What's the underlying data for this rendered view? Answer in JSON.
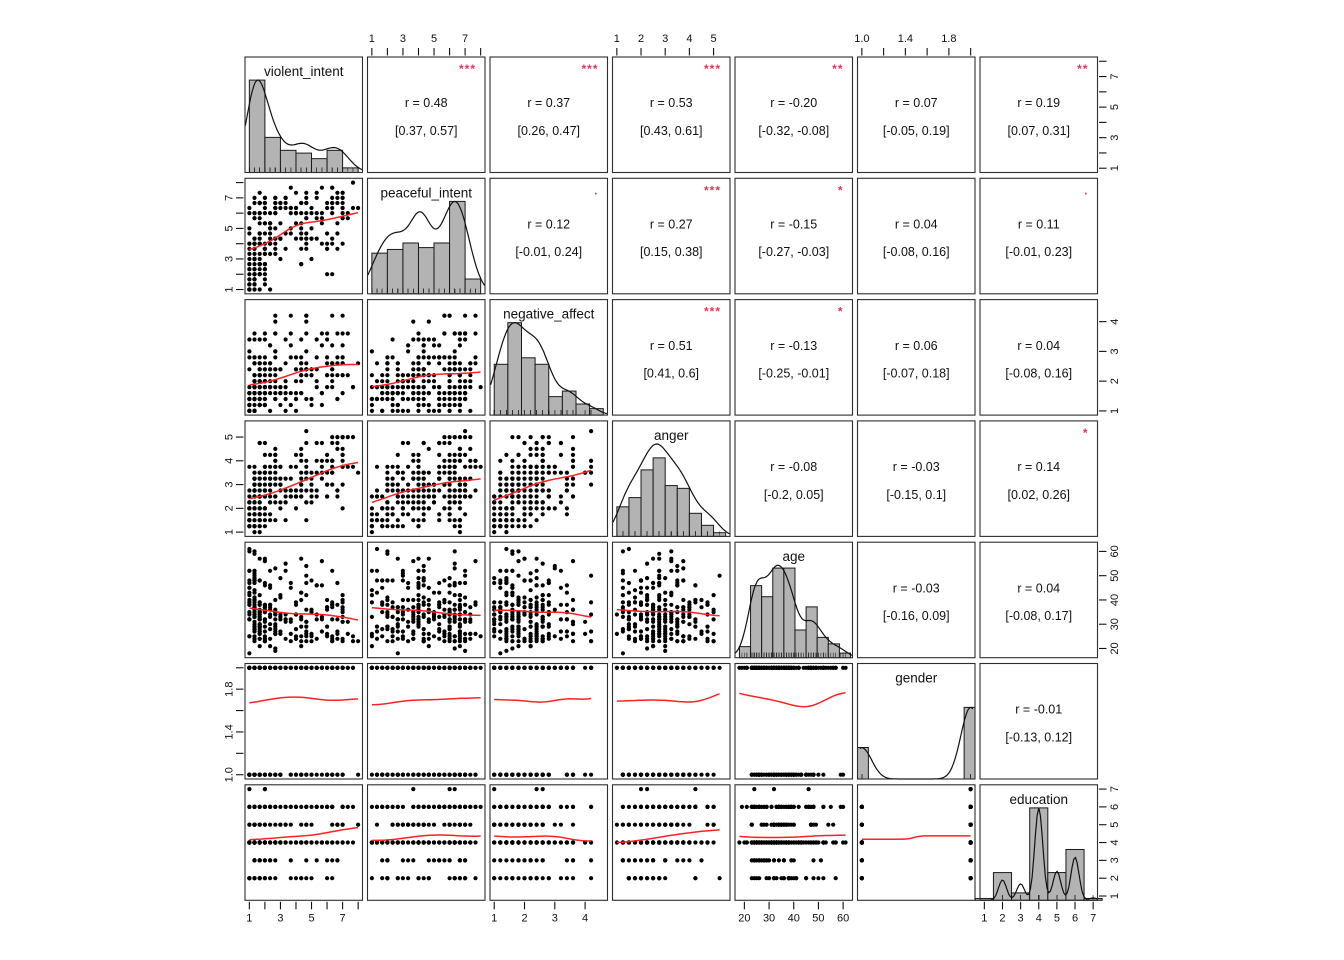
{
  "chart_data": {
    "type": "scatterplot-matrix",
    "n_points": 260,
    "variables": [
      {
        "name": "violent_intent",
        "kind": "likert",
        "lim": [
          0.72,
          8.28
        ],
        "snap": 0.3333,
        "ticks_at": [
          1,
          2,
          3,
          4,
          5,
          6,
          7,
          8
        ],
        "tick_labels": [
          "1",
          "",
          "3",
          "",
          "5",
          "",
          "7",
          ""
        ],
        "hist": {
          "edges": [
            1,
            2,
            3,
            4,
            5,
            6,
            7,
            8
          ],
          "heights": [
            1.0,
            0.38,
            0.24,
            0.21,
            0.15,
            0.24,
            0.05
          ],
          "hscale": 0.8
        },
        "kde_bw": 0.55
      },
      {
        "name": "peaceful_intent",
        "kind": "likert",
        "lim": [
          0.72,
          8.28
        ],
        "snap": 0.3333,
        "ticks_at": [
          1,
          2,
          3,
          4,
          5,
          6,
          7,
          8
        ],
        "tick_labels": [
          "1",
          "",
          "3",
          "",
          "5",
          "",
          "7",
          ""
        ],
        "hist": {
          "edges": [
            1,
            2,
            3,
            4,
            5,
            6,
            7,
            8
          ],
          "heights": [
            0.44,
            0.48,
            0.55,
            0.5,
            0.55,
            1.0,
            0.16
          ],
          "hscale": 0.8
        },
        "kde_bw": 0.55
      },
      {
        "name": "negative_affect",
        "kind": "cont",
        "lim": [
          0.86,
          4.74
        ],
        "snap": 0.2,
        "ticks_at": [
          1,
          2,
          3,
          4
        ],
        "tick_labels": [
          "1",
          "2",
          "3",
          "4"
        ],
        "hist": {
          "edges": [
            1,
            1.45,
            1.9,
            2.35,
            2.8,
            3.25,
            3.7,
            4.15,
            4.6
          ],
          "heights": [
            0.55,
            1.0,
            0.62,
            0.55,
            0.2,
            0.26,
            0.12,
            0.07
          ],
          "hscale": 0.8
        },
        "kde_bw": 0.3
      },
      {
        "name": "anger",
        "kind": "cont",
        "lim": [
          0.82,
          5.68
        ],
        "snap": 0.25,
        "ticks_at": [
          1,
          2,
          3,
          4,
          5
        ],
        "tick_labels": [
          "1",
          "2",
          "3",
          "4",
          "5"
        ],
        "hist": {
          "edges": [
            1,
            1.5,
            2,
            2.5,
            3,
            3.5,
            4,
            4.5,
            5,
            5.5
          ],
          "heights": [
            0.32,
            0.42,
            0.72,
            0.85,
            0.55,
            0.52,
            0.25,
            0.12,
            0.04
          ],
          "hscale": 0.8
        },
        "kde_bw": 0.38
      },
      {
        "name": "age",
        "kind": "int",
        "lim": [
          16.2,
          63.8
        ],
        "snap": 1,
        "ticks_at": [
          20,
          30,
          40,
          50,
          60
        ],
        "tick_labels": [
          "20",
          "30",
          "40",
          "50",
          "60"
        ],
        "hist": {
          "edges": [
            18,
            22.5,
            27,
            31.5,
            36,
            40.5,
            45,
            49.5,
            54,
            58.5,
            63
          ],
          "heights": [
            0.12,
            0.78,
            0.66,
            0.97,
            0.97,
            0.3,
            0.55,
            0.22,
            0.15,
            0.05
          ],
          "hscale": 0.8
        },
        "kde_bw": 2.8
      },
      {
        "name": "gender",
        "kind": "binary",
        "lim": [
          0.96,
          2.04
        ],
        "probs": [
          0.31,
          0.69
        ],
        "ticks_at": [
          1.0,
          1.2,
          1.4,
          1.6,
          1.8,
          2.0
        ],
        "tick_labels": [
          "1.0",
          "",
          "1.4",
          "",
          "1.8",
          ""
        ],
        "hist": {
          "bars": [
            [
              0.96,
              1.06,
              0.44
            ],
            [
              1.94,
              2.04,
              1.0
            ]
          ],
          "hscale": 0.62
        },
        "kde_bw": 0.09
      },
      {
        "name": "education",
        "kind": "ordinal",
        "lim": [
          0.76,
          7.24
        ],
        "probs": [
          0.02,
          0.13,
          0.05,
          0.42,
          0.14,
          0.22,
          0.02
        ],
        "ticks_at": [
          1,
          2,
          3,
          4,
          5,
          6,
          7
        ],
        "tick_labels": [
          "1",
          "2",
          "3",
          "4",
          "5",
          "6",
          "7"
        ],
        "hist": {
          "edges": [
            0.5,
            1.5,
            2.5,
            3.5,
            4.5,
            5.5,
            6.5,
            7.5
          ],
          "heights": [
            0.02,
            0.3,
            0.08,
            1.0,
            0.3,
            0.55,
            0.02
          ],
          "hscale": 0.8
        },
        "kde_bw": 0.22
      }
    ],
    "correlations": [
      {
        "row": 0,
        "col": 1,
        "r": 0.48,
        "r_label": "r = 0.48",
        "ci_label": "[0.37, 0.57]",
        "stars": "***"
      },
      {
        "row": 0,
        "col": 2,
        "r": 0.37,
        "r_label": "r = 0.37",
        "ci_label": "[0.26, 0.47]",
        "stars": "***"
      },
      {
        "row": 0,
        "col": 3,
        "r": 0.53,
        "r_label": "r = 0.53",
        "ci_label": "[0.43, 0.61]",
        "stars": "***"
      },
      {
        "row": 0,
        "col": 4,
        "r": -0.2,
        "r_label": "r = -0.20",
        "ci_label": "[-0.32, -0.08]",
        "stars": "**"
      },
      {
        "row": 0,
        "col": 5,
        "r": 0.07,
        "r_label": "r = 0.07",
        "ci_label": "[-0.05, 0.19]",
        "stars": ""
      },
      {
        "row": 0,
        "col": 6,
        "r": 0.19,
        "r_label": "r = 0.19",
        "ci_label": "[0.07, 0.31]",
        "stars": "**"
      },
      {
        "row": 1,
        "col": 2,
        "r": 0.12,
        "r_label": "r = 0.12",
        "ci_label": "[-0.01, 0.24]",
        "stars": "."
      },
      {
        "row": 1,
        "col": 3,
        "r": 0.27,
        "r_label": "r = 0.27",
        "ci_label": "[0.15, 0.38]",
        "stars": "***"
      },
      {
        "row": 1,
        "col": 4,
        "r": -0.15,
        "r_label": "r = -0.15",
        "ci_label": "[-0.27, -0.03]",
        "stars": "*"
      },
      {
        "row": 1,
        "col": 5,
        "r": 0.04,
        "r_label": "r = 0.04",
        "ci_label": "[-0.08, 0.16]",
        "stars": ""
      },
      {
        "row": 1,
        "col": 6,
        "r": 0.11,
        "r_label": "r = 0.11",
        "ci_label": "[-0.01, 0.23]",
        "stars": "."
      },
      {
        "row": 2,
        "col": 3,
        "r": 0.51,
        "r_label": "r = 0.51",
        "ci_label": "[0.41, 0.6]",
        "stars": "***"
      },
      {
        "row": 2,
        "col": 4,
        "r": -0.13,
        "r_label": "r = -0.13",
        "ci_label": "[-0.25, -0.01]",
        "stars": "*"
      },
      {
        "row": 2,
        "col": 5,
        "r": 0.06,
        "r_label": "r = 0.06",
        "ci_label": "[-0.07, 0.18]",
        "stars": ""
      },
      {
        "row": 2,
        "col": 6,
        "r": 0.04,
        "r_label": "r = 0.04",
        "ci_label": "[-0.08, 0.16]",
        "stars": ""
      },
      {
        "row": 3,
        "col": 4,
        "r": -0.08,
        "r_label": "r = -0.08",
        "ci_label": "[-0.2, 0.05]",
        "stars": ""
      },
      {
        "row": 3,
        "col": 5,
        "r": -0.03,
        "r_label": "r = -0.03",
        "ci_label": "[-0.15, 0.1]",
        "stars": ""
      },
      {
        "row": 3,
        "col": 6,
        "r": 0.14,
        "r_label": "r = 0.14",
        "ci_label": "[0.02, 0.26]",
        "stars": "*"
      },
      {
        "row": 4,
        "col": 5,
        "r": -0.03,
        "r_label": "r = -0.03",
        "ci_label": "[-0.16, 0.09]",
        "stars": ""
      },
      {
        "row": 4,
        "col": 6,
        "r": 0.04,
        "r_label": "r = 0.04",
        "ci_label": "[-0.08, 0.17]",
        "stars": ""
      },
      {
        "row": 5,
        "col": 6,
        "r": -0.01,
        "r_label": "r = -0.01",
        "ci_label": "[-0.13, 0.12]",
        "stars": ""
      }
    ],
    "axes": {
      "top_cols": [
        1,
        3,
        5
      ],
      "bottom_cols": [
        0,
        2,
        4,
        6
      ],
      "left_rows": [
        1,
        3,
        5
      ],
      "right_rows": [
        0,
        2,
        4,
        6
      ]
    },
    "style": {
      "background": "#ffffff",
      "point_color": "#000000",
      "fit_line_color": "#ff2222",
      "stars_color": "#e0355a",
      "hist_fill": "#b3b3b3",
      "hist_border": "#1a1a1a",
      "panel_border": "#2e2e2e",
      "text_color": "#111111",
      "density_color": "#111111"
    }
  }
}
